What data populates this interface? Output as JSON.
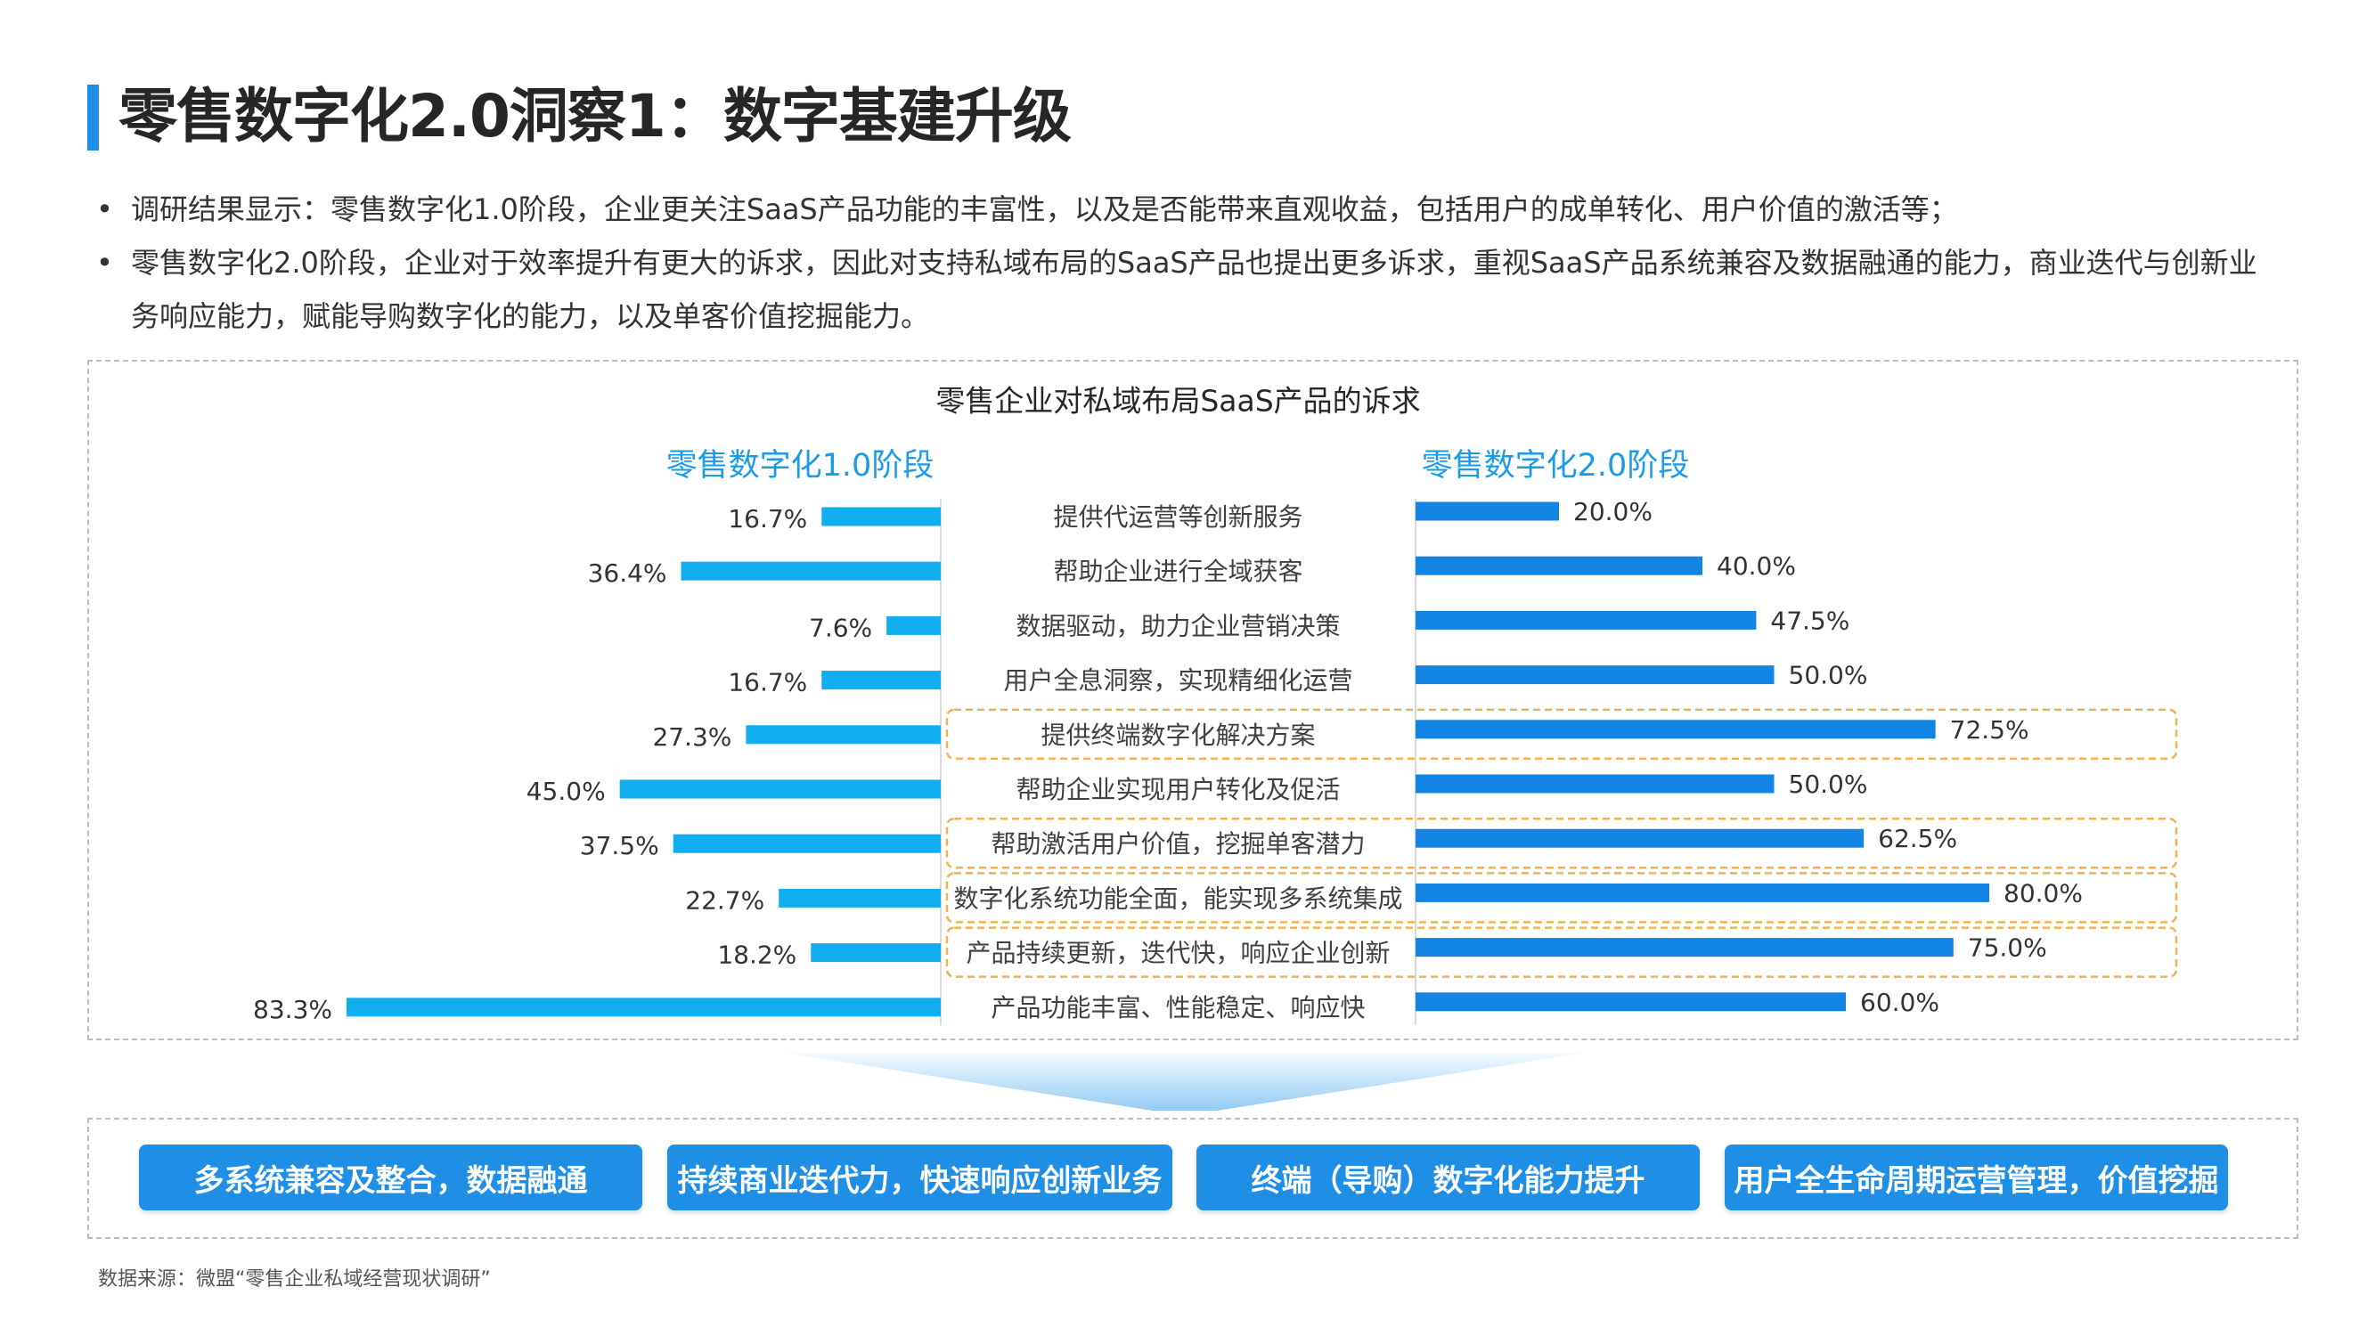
{
  "page": {
    "title": "零售数字化2.0洞察1：数字基建升级",
    "bullets": [
      "调研结果显示：零售数字化1.0阶段，企业更关注SaaS产品功能的丰富性，以及是否能带来直观收益，包括用户的成单转化、用户价值的激活等；",
      "零售数字化2.0阶段，企业对于效率提升有更大的诉求，因此对支持私域布局的SaaS产品也提出更多诉求，重视SaaS产品系统兼容及数据融通的能力，商业迭代与创新业务响应能力，赋能导购数字化的能力，以及单客价值挖掘能力。"
    ],
    "bullet_symbol": "•",
    "summary_pills": [
      "多系统兼容及整合，数据融通",
      "持续商业迭代力，快速响应创新业务",
      "终端（导购）数字化能力提升",
      "用户全生命周期运营管理，价值挖掘"
    ],
    "source": "数据来源：微盟“零售企业私域经营现状调研”"
  },
  "colors": {
    "accent": "#1f8fe6",
    "stage1_bar": "#10aeef",
    "stage2_bar": "#1383e4",
    "stage_label": "#1a9be8",
    "highlight_border": "#f0b350",
    "text": "#333333"
  },
  "chart_data": {
    "type": "bar",
    "orientation": "horizontal-butterfly",
    "title": "零售企业对私域布局SaaS产品的诉求",
    "categories": [
      "提供代运营等创新服务",
      "帮助企业进行全域获客",
      "数据驱动，助力企业营销决策",
      "用户全息洞察，实现精细化运营",
      "提供终端数字化解决方案",
      "帮助企业实现用户转化及促活",
      "帮助激活用户价值，挖掘单客潜力",
      "数字化系统功能全面，能实现多系统集成",
      "产品持续更新，迭代快，响应企业创新",
      "产品功能丰富、性能稳定、响应快"
    ],
    "series": [
      {
        "name": "零售数字化1.0阶段",
        "side": "left",
        "values": [
          16.7,
          36.4,
          7.6,
          16.7,
          27.3,
          45.0,
          37.5,
          22.7,
          18.2,
          83.3
        ],
        "labels": [
          "16.7%",
          "36.4%",
          "7.6%",
          "16.7%",
          "27.3%",
          "45.0%",
          "37.5%",
          "22.7%",
          "18.2%",
          "83.3%"
        ]
      },
      {
        "name": "零售数字化2.0阶段",
        "side": "right",
        "values": [
          20.0,
          40.0,
          47.5,
          50.0,
          72.5,
          50.0,
          62.5,
          80.0,
          75.0,
          60.0
        ],
        "labels": [
          "20.0%",
          "40.0%",
          "47.5%",
          "50.0%",
          "72.5%",
          "50.0%",
          "62.5%",
          "80.0%",
          "75.0%",
          "60.0%"
        ]
      }
    ],
    "highlighted_categories": [
      "提供终端数字化解决方案",
      "帮助激活用户价值，挖掘单客潜力",
      "数字化系统功能全面，能实现多系统集成",
      "产品持续更新，迭代快，响应企业创新"
    ],
    "value_unit": "%",
    "xlim": [
      0,
      100
    ],
    "grid": false,
    "legend": "none"
  }
}
